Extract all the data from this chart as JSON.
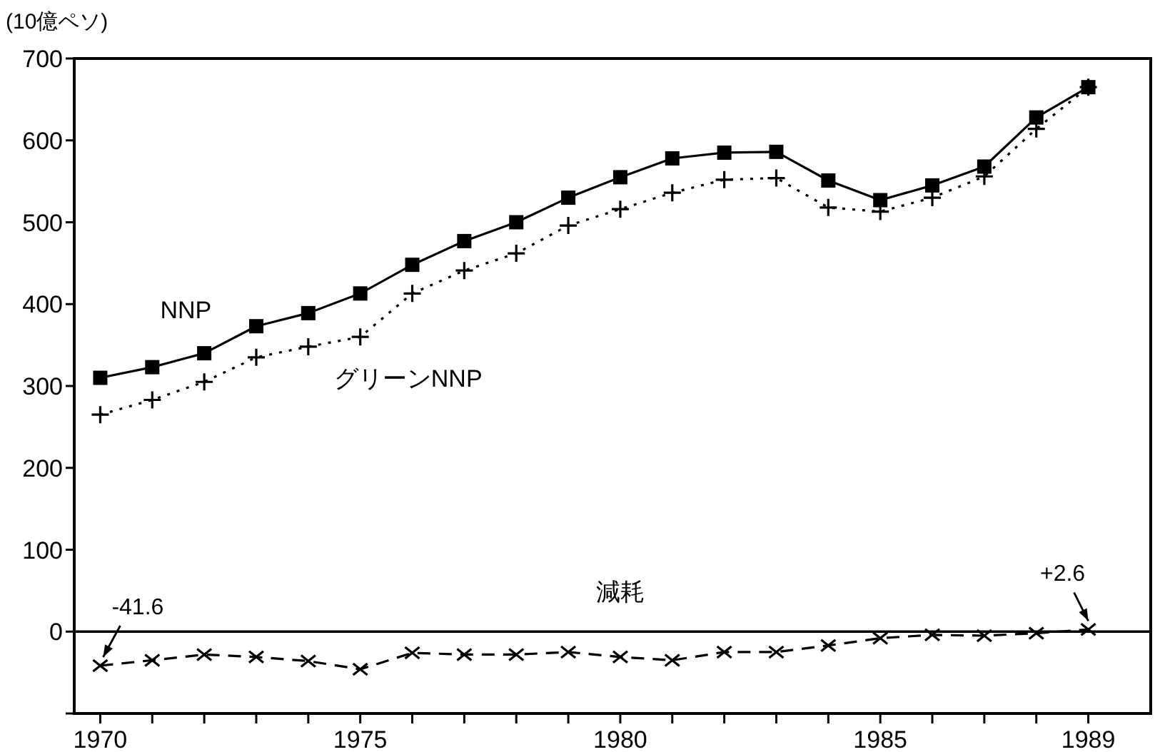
{
  "chart_data": {
    "type": "line",
    "ylabel": "(10億ペソ)",
    "x": [
      1970,
      1971,
      1972,
      1973,
      1974,
      1975,
      1976,
      1977,
      1978,
      1979,
      1980,
      1981,
      1982,
      1983,
      1984,
      1985,
      1986,
      1987,
      1988,
      1989
    ],
    "xlim": [
      1969.5,
      1990.2
    ],
    "xticks": [
      1970,
      {
        "value": 1971,
        "label": null
      },
      {
        "value": 1972,
        "label": null
      },
      {
        "value": 1973,
        "label": null
      },
      {
        "value": 1974,
        "label": null
      },
      1975,
      {
        "value": 1976,
        "label": null
      },
      {
        "value": 1977,
        "label": null
      },
      {
        "value": 1978,
        "label": null
      },
      {
        "value": 1979,
        "label": null
      },
      1980,
      {
        "value": 1981,
        "label": null
      },
      {
        "value": 1982,
        "label": null
      },
      {
        "value": 1983,
        "label": null
      },
      {
        "value": 1984,
        "label": null
      },
      1985,
      {
        "value": 1986,
        "label": null
      },
      {
        "value": 1987,
        "label": null
      },
      {
        "value": 1988,
        "label": null
      },
      1989
    ],
    "ylim": [
      -100,
      700
    ],
    "yticks": [
      {
        "value": -100,
        "label": null
      },
      0,
      100,
      200,
      300,
      400,
      500,
      600,
      700
    ],
    "series": [
      {
        "name": "NNP",
        "color": "#000000",
        "marker": "square",
        "line_style": "solid",
        "values": [
          310,
          323,
          340,
          373,
          389,
          413,
          448,
          477,
          500,
          530,
          555,
          578,
          585,
          586,
          551,
          527,
          545,
          568,
          628,
          665
        ]
      },
      {
        "name": "グリーンNNP",
        "color": "#000000",
        "marker": "plus",
        "line_style": "dotted",
        "values": [
          265,
          283,
          305,
          335,
          348,
          360,
          413,
          441,
          462,
          496,
          516,
          536,
          552,
          554,
          518,
          513,
          530,
          556,
          614,
          665
        ]
      },
      {
        "name": "減耗",
        "color": "#000000",
        "marker": "cross",
        "line_style": "dashed",
        "values": [
          -41.6,
          -35,
          -28,
          -31,
          -36,
          -46,
          -26,
          -28,
          -28,
          -25,
          -31,
          -35,
          -25,
          -25,
          -17,
          -8,
          -4,
          -5,
          -2,
          2.6
        ]
      }
    ],
    "ref_lines": [
      {
        "axis": "y",
        "value": 0,
        "color": "#000000",
        "line_style": "solid"
      }
    ],
    "annotations": [
      {
        "text": "-41.6",
        "x": 1970,
        "y": -41.6
      },
      {
        "text": "+2.6",
        "x": 1989,
        "y": 2.6
      }
    ],
    "grid": false,
    "legend": false
  }
}
